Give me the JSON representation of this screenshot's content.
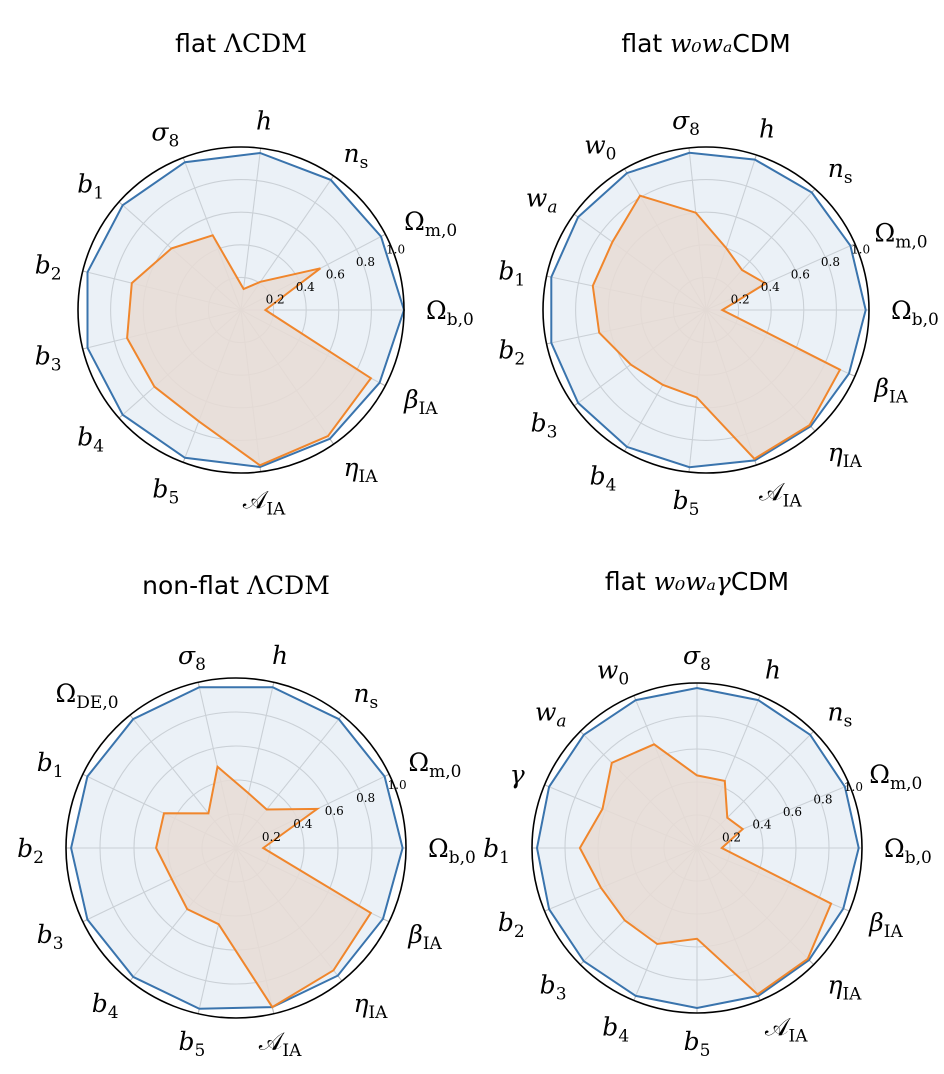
{
  "figure": {
    "colors": {
      "blue": "#3a74ad",
      "orange": "#f0862c",
      "blue_fill": "#dbe6f1",
      "orange_fill": "#e7dcd5",
      "grid": "#b7b7b7",
      "outline": "#000000"
    }
  },
  "chart_data": [
    {
      "type": "radar",
      "title": {
        "prefix": "flat ",
        "math": "ΛCDM",
        "math_style": "upright",
        "suffix": ""
      },
      "rlim": [
        0,
        1.0
      ],
      "rticks": [
        "0.2",
        "0.4",
        "0.6",
        "0.8",
        "1.0"
      ],
      "grid": true,
      "params": [
        {
          "base": "Ω",
          "sub": "b,0",
          "sub_style": "upright",
          "base_style": "upright"
        },
        {
          "base": "Ω",
          "sub": "m,0",
          "sub_style": "upright",
          "base_style": "upright"
        },
        {
          "base": "n",
          "sub": "s",
          "sub_style": "upright",
          "base_style": "italic"
        },
        {
          "base": "h",
          "sub": "",
          "sub_style": "upright",
          "base_style": "italic"
        },
        {
          "base": "σ",
          "sub": "8",
          "sub_style": "upright",
          "base_style": "italic"
        },
        {
          "base": "b",
          "sub": "1",
          "sub_style": "upright",
          "base_style": "italic"
        },
        {
          "base": "b",
          "sub": "2",
          "sub_style": "upright",
          "base_style": "italic"
        },
        {
          "base": "b",
          "sub": "3",
          "sub_style": "upright",
          "base_style": "italic"
        },
        {
          "base": "b",
          "sub": "4",
          "sub_style": "upright",
          "base_style": "italic"
        },
        {
          "base": "b",
          "sub": "5",
          "sub_style": "upright",
          "base_style": "italic"
        },
        {
          "base": "𝒜",
          "sub": "IA",
          "sub_style": "upright",
          "base_style": "upright"
        },
        {
          "base": "η",
          "sub": "IA",
          "sub_style": "upright",
          "base_style": "italic"
        },
        {
          "base": "β",
          "sub": "IA",
          "sub_style": "upright",
          "base_style": "italic"
        }
      ],
      "series": [
        {
          "color_key": "blue",
          "values": [
            1.0,
            0.97,
            0.97,
            0.97,
            0.97,
            0.97,
            0.97,
            0.97,
            0.97,
            0.97,
            0.97,
            0.96,
            0.96
          ]
        },
        {
          "color_key": "orange",
          "values": [
            0.15,
            0.55,
            0.21,
            0.13,
            0.49,
            0.57,
            0.69,
            0.72,
            0.71,
            0.73,
            0.96,
            0.94,
            0.9
          ]
        }
      ]
    },
    {
      "type": "radar",
      "title": {
        "prefix": "flat ",
        "math": "w₀wₐ",
        "math_style": "italic",
        "suffix": "CDM"
      },
      "rlim": [
        0,
        1.0
      ],
      "rticks": [
        "0.2",
        "0.4",
        "0.6",
        "0.8",
        "1.0"
      ],
      "grid": true,
      "params": [
        {
          "base": "Ω",
          "sub": "b,0",
          "sub_style": "upright",
          "base_style": "upright"
        },
        {
          "base": "Ω",
          "sub": "m,0",
          "sub_style": "upright",
          "base_style": "upright"
        },
        {
          "base": "n",
          "sub": "s",
          "sub_style": "upright",
          "base_style": "italic"
        },
        {
          "base": "h",
          "sub": "",
          "sub_style": "upright",
          "base_style": "italic"
        },
        {
          "base": "σ",
          "sub": "8",
          "sub_style": "upright",
          "base_style": "italic"
        },
        {
          "base": "w",
          "sub": "0",
          "sub_style": "upright",
          "base_style": "italic"
        },
        {
          "base": "w",
          "sub": "a",
          "sub_style": "italic",
          "base_style": "italic"
        },
        {
          "base": "b",
          "sub": "1",
          "sub_style": "upright",
          "base_style": "italic"
        },
        {
          "base": "b",
          "sub": "2",
          "sub_style": "upright",
          "base_style": "italic"
        },
        {
          "base": "b",
          "sub": "3",
          "sub_style": "upright",
          "base_style": "italic"
        },
        {
          "base": "b",
          "sub": "4",
          "sub_style": "upright",
          "base_style": "italic"
        },
        {
          "base": "b",
          "sub": "5",
          "sub_style": "upright",
          "base_style": "italic"
        },
        {
          "base": "𝒜",
          "sub": "IA",
          "sub_style": "upright",
          "base_style": "upright"
        },
        {
          "base": "η",
          "sub": "IA",
          "sub_style": "upright",
          "base_style": "italic"
        },
        {
          "base": "β",
          "sub": "IA",
          "sub_style": "upright",
          "base_style": "italic"
        }
      ],
      "series": [
        {
          "color_key": "blue",
          "values": [
            0.98,
            0.97,
            0.97,
            0.97,
            0.97,
            0.97,
            0.97,
            0.97,
            0.97,
            0.97,
            0.97,
            0.97,
            0.97,
            0.96,
            0.96
          ]
        },
        {
          "color_key": "orange",
          "values": [
            0.1,
            0.4,
            0.33,
            0.4,
            0.6,
            0.81,
            0.71,
            0.71,
            0.67,
            0.57,
            0.53,
            0.54,
            0.96,
            0.95,
            0.9
          ]
        }
      ]
    },
    {
      "type": "radar",
      "title": {
        "prefix": "non-flat ",
        "math": "ΛCDM",
        "math_style": "upright",
        "suffix": ""
      },
      "rlim": [
        0,
        1.0
      ],
      "rticks": [
        "0.2",
        "0.4",
        "0.6",
        "0.8",
        "1.0"
      ],
      "grid": true,
      "params": [
        {
          "base": "Ω",
          "sub": "b,0",
          "sub_style": "upright",
          "base_style": "upright"
        },
        {
          "base": "Ω",
          "sub": "m,0",
          "sub_style": "upright",
          "base_style": "upright"
        },
        {
          "base": "n",
          "sub": "s",
          "sub_style": "upright",
          "base_style": "italic"
        },
        {
          "base": "h",
          "sub": "",
          "sub_style": "upright",
          "base_style": "italic"
        },
        {
          "base": "σ",
          "sub": "8",
          "sub_style": "upright",
          "base_style": "italic"
        },
        {
          "base": "Ω",
          "sub": "DE,0",
          "sub_style": "upright",
          "base_style": "upright"
        },
        {
          "base": "b",
          "sub": "1",
          "sub_style": "upright",
          "base_style": "italic"
        },
        {
          "base": "b",
          "sub": "2",
          "sub_style": "upright",
          "base_style": "italic"
        },
        {
          "base": "b",
          "sub": "3",
          "sub_style": "upright",
          "base_style": "italic"
        },
        {
          "base": "b",
          "sub": "4",
          "sub_style": "upright",
          "base_style": "italic"
        },
        {
          "base": "b",
          "sub": "5",
          "sub_style": "upright",
          "base_style": "italic"
        },
        {
          "base": "𝒜",
          "sub": "IA",
          "sub_style": "upright",
          "base_style": "upright"
        },
        {
          "base": "η",
          "sub": "IA",
          "sub_style": "upright",
          "base_style": "italic"
        },
        {
          "base": "β",
          "sub": "IA",
          "sub_style": "upright",
          "base_style": "italic"
        }
      ],
      "series": [
        {
          "color_key": "blue",
          "values": [
            0.98,
            0.97,
            0.97,
            0.97,
            0.97,
            0.97,
            0.97,
            0.97,
            0.97,
            0.97,
            0.97,
            0.96,
            0.96,
            0.96
          ]
        },
        {
          "color_key": "orange",
          "values": [
            0.16,
            0.53,
            0.29,
            0.33,
            0.49,
            0.26,
            0.47,
            0.47,
            0.42,
            0.46,
            0.46,
            0.96,
            0.92,
            0.88
          ]
        }
      ]
    },
    {
      "type": "radar",
      "title": {
        "prefix": "flat ",
        "math": "w₀wₐγ",
        "math_style": "italic",
        "suffix": "CDM"
      },
      "rlim": [
        0,
        1.0
      ],
      "rticks": [
        "0.2",
        "0.4",
        "0.6",
        "0.8",
        "1.0"
      ],
      "grid": true,
      "params": [
        {
          "base": "Ω",
          "sub": "b,0",
          "sub_style": "upright",
          "base_style": "upright"
        },
        {
          "base": "Ω",
          "sub": "m,0",
          "sub_style": "upright",
          "base_style": "upright"
        },
        {
          "base": "n",
          "sub": "s",
          "sub_style": "upright",
          "base_style": "italic"
        },
        {
          "base": "h",
          "sub": "",
          "sub_style": "upright",
          "base_style": "italic"
        },
        {
          "base": "σ",
          "sub": "8",
          "sub_style": "upright",
          "base_style": "italic"
        },
        {
          "base": "w",
          "sub": "0",
          "sub_style": "upright",
          "base_style": "italic"
        },
        {
          "base": "w",
          "sub": "a",
          "sub_style": "italic",
          "base_style": "italic"
        },
        {
          "base": "γ",
          "sub": "",
          "sub_style": "upright",
          "base_style": "italic"
        },
        {
          "base": "b",
          "sub": "1",
          "sub_style": "upright",
          "base_style": "italic"
        },
        {
          "base": "b",
          "sub": "2",
          "sub_style": "upright",
          "base_style": "italic"
        },
        {
          "base": "b",
          "sub": "3",
          "sub_style": "upright",
          "base_style": "italic"
        },
        {
          "base": "b",
          "sub": "4",
          "sub_style": "upright",
          "base_style": "italic"
        },
        {
          "base": "b",
          "sub": "5",
          "sub_style": "upright",
          "base_style": "italic"
        },
        {
          "base": "𝒜",
          "sub": "IA",
          "sub_style": "upright",
          "base_style": "upright"
        },
        {
          "base": "η",
          "sub": "IA",
          "sub_style": "upright",
          "base_style": "italic"
        },
        {
          "base": "β",
          "sub": "IA",
          "sub_style": "upright",
          "base_style": "italic"
        }
      ],
      "series": [
        {
          "color_key": "blue",
          "values": [
            0.98,
            0.97,
            0.97,
            0.97,
            0.97,
            0.97,
            0.97,
            0.97,
            0.97,
            0.97,
            0.97,
            0.97,
            0.97,
            0.97,
            0.96,
            0.96
          ]
        },
        {
          "color_key": "orange",
          "values": [
            0.15,
            0.3,
            0.26,
            0.44,
            0.44,
            0.68,
            0.73,
            0.62,
            0.71,
            0.63,
            0.62,
            0.63,
            0.55,
            0.96,
            0.95,
            0.88
          ]
        }
      ]
    }
  ]
}
